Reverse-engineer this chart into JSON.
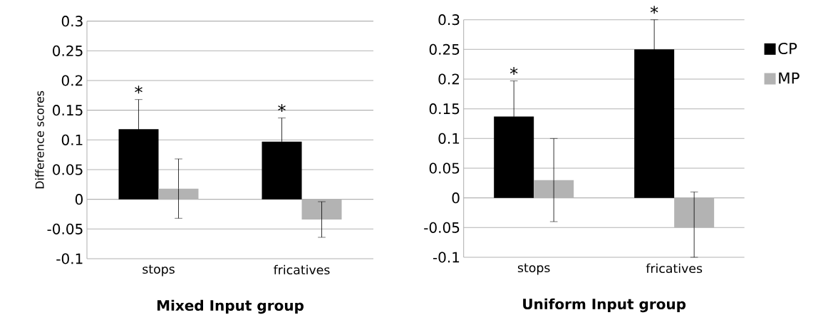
{
  "chart_data": [
    {
      "type": "bar",
      "xlabel": "Mixed Input group",
      "ylabel": "Difference scores",
      "categories": [
        "stops",
        "fricatives"
      ],
      "series": [
        {
          "color": "#000000",
          "values": [
            0.118,
            0.097
          ],
          "errors": [
            0.05,
            0.04
          ]
        },
        {
          "color": "#b3b3b3",
          "values": [
            0.018,
            -0.034
          ],
          "errors": [
            0.05,
            0.03
          ]
        }
      ],
      "ylim": [
        -0.1,
        0.3
      ],
      "yticks": [
        -0.1,
        -0.05,
        0,
        0.05,
        0.1,
        0.15,
        0.2,
        0.25,
        0.3
      ],
      "grid": "y",
      "annotations": [
        "*",
        "*"
      ]
    },
    {
      "type": "bar",
      "xlabel": "Uniform Input group",
      "categories": [
        "stops",
        "fricatives"
      ],
      "series": [
        {
          "name": "CP",
          "color": "#000000",
          "values": [
            0.137,
            0.25
          ],
          "errors": [
            0.06,
            0.05
          ]
        },
        {
          "name": "MP",
          "color": "#b3b3b3",
          "values": [
            0.03,
            -0.05
          ],
          "errors": [
            0.07,
            [
              -0.1,
              0.01
            ]
          ]
        }
      ],
      "ylim": [
        -0.1,
        0.3
      ],
      "yticks": [
        -0.1,
        -0.05,
        0,
        0.05,
        0.1,
        0.15,
        0.2,
        0.25,
        0.3
      ],
      "grid": "y",
      "legend": "right",
      "annotations": [
        "*",
        "*"
      ]
    }
  ]
}
